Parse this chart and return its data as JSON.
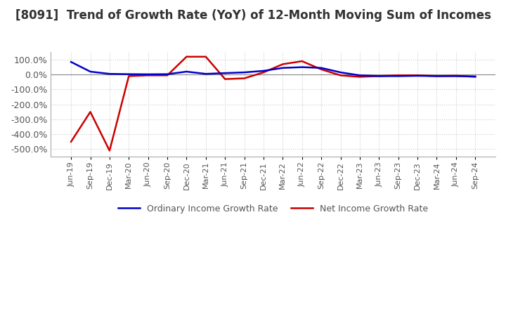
{
  "title": "[8091]  Trend of Growth Rate (YoY) of 12-Month Moving Sum of Incomes",
  "title_fontsize": 12,
  "ylim": [
    -550,
    150
  ],
  "yticks": [
    100,
    0,
    -100,
    -200,
    -300,
    -400,
    -500
  ],
  "ytick_labels": [
    "100.0%",
    "0.0%",
    "-100.0%",
    "-200.0%",
    "-300.0%",
    "-400.0%",
    "-500.0%"
  ],
  "background_color": "#ffffff",
  "grid_color": "#cccccc",
  "ordinary_color": "#0000cc",
  "net_color": "#cc0000",
  "legend_ordinary": "Ordinary Income Growth Rate",
  "legend_net": "Net Income Growth Rate",
  "x_labels": [
    "Jun-19",
    "Sep-19",
    "Dec-19",
    "Mar-20",
    "Jun-20",
    "Sep-20",
    "Dec-20",
    "Mar-21",
    "Jun-21",
    "Sep-21",
    "Dec-21",
    "Mar-22",
    "Jun-22",
    "Sep-22",
    "Dec-22",
    "Mar-23",
    "Jun-23",
    "Sep-23",
    "Dec-23",
    "Mar-24",
    "Jun-24",
    "Sep-24"
  ],
  "ordinary_income_growth": [
    85,
    20,
    5,
    3,
    2,
    3,
    20,
    5,
    10,
    15,
    25,
    45,
    50,
    45,
    15,
    -5,
    -10,
    -10,
    -8,
    -10,
    -10,
    -12
  ],
  "net_income_growth": [
    -450,
    -250,
    -510,
    -10,
    -5,
    -5,
    120,
    120,
    -30,
    -25,
    15,
    70,
    90,
    35,
    -5,
    -15,
    -10,
    -5,
    -5,
    -10,
    -8,
    -15
  ]
}
